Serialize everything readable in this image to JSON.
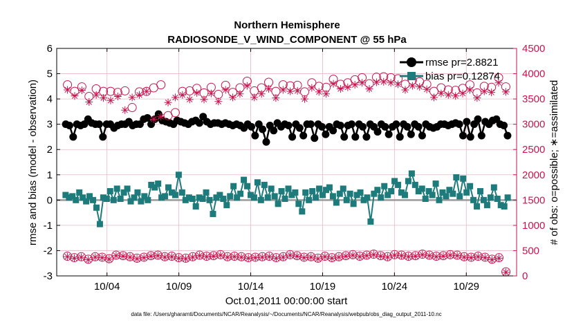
{
  "chart_data": {
    "type": "line",
    "title": "Northern Hemisphere",
    "subtitle": "RADIOSONDE_V_WIND_COMPONENT @ 55 hPa",
    "xlabel": "Oct.01,2011 00:00:00 start",
    "ylabel_left": "rmse and bias (model - observation)",
    "ylabel_right": "# of obs: o=possible; ∗=assimilated",
    "footer": "data file: /Users/gharamti/Documents/NCAR/Reanalysis/~/Documents/NCAR/Reanalysis/webpub/obs_diag_output_2011-10.nc",
    "ylim_left": [
      -3,
      6
    ],
    "ylim_right": [
      0,
      4500
    ],
    "yticks_left": [
      -3,
      -2,
      -1,
      0,
      1,
      2,
      3,
      4,
      5,
      6
    ],
    "yticks_right": [
      0,
      500,
      1000,
      1500,
      2000,
      2500,
      3000,
      3500,
      4000,
      4500
    ],
    "xlim_days": [
      0.5,
      32.5
    ],
    "xticks": [
      {
        "day": 4,
        "label": "10/04"
      },
      {
        "day": 9,
        "label": "10/09"
      },
      {
        "day": 14,
        "label": "10/14"
      },
      {
        "day": 19,
        "label": "10/19"
      },
      {
        "day": 24,
        "label": "10/24"
      },
      {
        "day": 29,
        "label": "10/29"
      }
    ],
    "grid": true,
    "legend_position": "top-right",
    "colors": {
      "rmse": "#000000",
      "bias": "#1e7b7b",
      "obs": "#c8154f",
      "zero_line": "#9a9a9a",
      "grid": "#e6b9c8"
    },
    "series": [
      {
        "name": "rmse",
        "legend": "rmse pr=2.8821",
        "axis": "left",
        "marker": "circle",
        "values": [
          3.0,
          2.95,
          2.5,
          3.0,
          2.95,
          3.0,
          3.2,
          3.05,
          3.0,
          3.0,
          2.5,
          3.0,
          3.0,
          2.85,
          2.95,
          3.0,
          3.0,
          3.1,
          2.95,
          3.0,
          3.0,
          3.2,
          3.25,
          3.0,
          3.2,
          3.4,
          3.15,
          3.1,
          3.05,
          3.0,
          3.15,
          3.1,
          3.05,
          3.0,
          3.1,
          3.15,
          3.05,
          3.3,
          3.1,
          3.0,
          3.05,
          3.05,
          3.0,
          3.05,
          3.0,
          2.95,
          3.0,
          2.95,
          2.85,
          3.0,
          2.9,
          2.55,
          3.0,
          2.8,
          2.3,
          2.95,
          2.75,
          3.05,
          2.9,
          3.0,
          2.95,
          2.5,
          3.0,
          2.85,
          2.55,
          3.0,
          3.0,
          2.45,
          3.0,
          2.9,
          2.6,
          2.9,
          2.75,
          3.0,
          2.95,
          2.5,
          2.95,
          3.0,
          2.5,
          3.0,
          2.9,
          2.5,
          3.0,
          2.9,
          2.7,
          3.0,
          2.9,
          2.6,
          2.9,
          3.0,
          2.5,
          3.0,
          2.9,
          2.6,
          3.0,
          2.9,
          2.55,
          3.0,
          2.9,
          2.85,
          2.9,
          3.0,
          3.0,
          2.95,
          3.0,
          3.05,
          3.0,
          2.55,
          3.1,
          2.5,
          3.0,
          3.2,
          2.55,
          3.1,
          3.0,
          3.15,
          3.2,
          3.0,
          2.95,
          2.55
        ]
      },
      {
        "name": "bias",
        "legend": "bias pr=0.12874",
        "axis": "left",
        "marker": "square",
        "values": [
          0.2,
          0.1,
          0.15,
          0.0,
          0.3,
          0.1,
          -0.05,
          0.15,
          0.0,
          -0.3,
          -0.95,
          0.1,
          0.05,
          0.35,
          0.0,
          0.45,
          0.05,
          0.3,
          0.45,
          -0.05,
          0.1,
          0.3,
          -0.05,
          0.15,
          0.0,
          0.6,
          0.5,
          0.65,
          0.1,
          0.15,
          0.5,
          0.3,
          0.2,
          1.0,
          0.3,
          0.0,
          0.1,
          0.05,
          -0.25,
          0.1,
          0.05,
          0.3,
          0.0,
          -0.55,
          0.1,
          0.2,
          0.05,
          -0.2,
          0.15,
          0.55,
          0.1,
          0.25,
          0.8,
          0.55,
          0.2,
          0.1,
          0.7,
          0.0,
          0.6,
          0.1,
          0.45,
          0.15,
          -0.15,
          0.35,
          0.05,
          0.45,
          0.2,
          0.3,
          -0.15,
          -0.45,
          0.3,
          0.0,
          0.35,
          0.1,
          0.45,
          0.2,
          0.4,
          0.5,
          0.15,
          -0.1,
          0.25,
          0.45,
          0.0,
          0.25,
          -0.15,
          0.2,
          0.3,
          0.0,
          0.1,
          -0.85,
          0.25,
          0.4,
          0.1,
          0.55,
          0.2,
          0.35,
          0.75,
          0.6,
          0.3,
          0.2,
          0.75,
          1.05,
          0.6,
          0.35,
          0.45,
          0.05,
          0.35,
          0.2,
          0.65,
          0.0,
          0.3,
          0.15,
          0.4,
          0.25,
          0.9,
          0.15,
          0.85,
          0.3,
          0.55,
          0.0,
          -0.25,
          0.35,
          0.0,
          -0.2,
          0.1,
          0.5,
          0.05,
          -0.2,
          -0.25,
          0.1
        ]
      },
      {
        "name": "obs possible",
        "axis": "right",
        "marker": "open-circle",
        "values": [
          3780,
          3650,
          3740,
          3550,
          3700,
          3650,
          3650,
          3630,
          3660,
          3330,
          3640,
          3650,
          3720,
          3780,
          3170,
          3230,
          3650,
          3660,
          3710,
          3620,
          3730,
          3590,
          3770,
          3630,
          3720,
          3850,
          3660,
          3720,
          3830,
          3650,
          3780,
          3760,
          3770,
          3640,
          3820,
          3750,
          3730,
          3890,
          3790,
          3820,
          3880,
          3920,
          3800,
          3930,
          3940,
          3920,
          3900,
          3790,
          3870,
          3840,
          3790,
          3650,
          3720,
          3680,
          3670,
          3710,
          3780,
          3620,
          3750,
          3730,
          3920,
          3740
        ]
      },
      {
        "name": "obs assimilated",
        "axis": "right",
        "marker": "asterisk",
        "values": [
          3680,
          3560,
          3670,
          3440,
          3580,
          3520,
          3470,
          3550,
          3280,
          3530,
          3580,
          3650,
          3100,
          3150,
          3430,
          3530,
          3580,
          3490,
          3620,
          3490,
          3610,
          3450,
          3680,
          3530,
          3600,
          3760,
          3530,
          3600,
          3700,
          3520,
          3680,
          3650,
          3660,
          3500,
          3720,
          3640,
          3600,
          3800,
          3700,
          3730,
          3780,
          3820,
          3700,
          3830,
          3840,
          3820,
          3790,
          3680,
          3760,
          3740,
          3690,
          3530,
          3610,
          3580,
          3560,
          3610,
          3680,
          3520,
          3650,
          3630,
          3820,
          3640
        ]
      },
      {
        "name": "obs possible (low)",
        "axis": "right",
        "marker": "open-circle",
        "values": [
          390,
          360,
          380,
          330,
          380,
          370,
          340,
          410,
          400,
          380,
          350,
          370,
          400,
          410,
          380,
          390,
          360,
          350,
          380,
          410,
          390,
          400,
          420,
          380,
          390,
          380,
          360,
          370,
          380,
          390,
          360,
          380,
          420,
          400,
          370,
          380,
          350,
          390,
          360,
          380,
          400,
          420,
          390,
          410,
          430,
          400,
          380,
          420,
          410,
          390,
          400,
          430,
          410,
          390,
          400,
          420,
          410,
          380,
          370,
          390,
          370,
          330,
          360,
          80
        ]
      },
      {
        "name": "obs assimilated (low)",
        "axis": "right",
        "marker": "asterisk",
        "values": [
          380,
          350,
          370,
          320,
          370,
          360,
          330,
          400,
          390,
          370,
          340,
          360,
          390,
          400,
          370,
          380,
          350,
          340,
          370,
          400,
          380,
          390,
          410,
          370,
          380,
          370,
          350,
          360,
          370,
          380,
          350,
          370,
          410,
          390,
          360,
          370,
          340,
          380,
          350,
          370,
          390,
          410,
          380,
          400,
          420,
          390,
          370,
          410,
          400,
          380,
          390,
          420,
          400,
          380,
          390,
          410,
          400,
          370,
          360,
          380,
          360,
          320,
          350,
          70
        ]
      }
    ]
  }
}
